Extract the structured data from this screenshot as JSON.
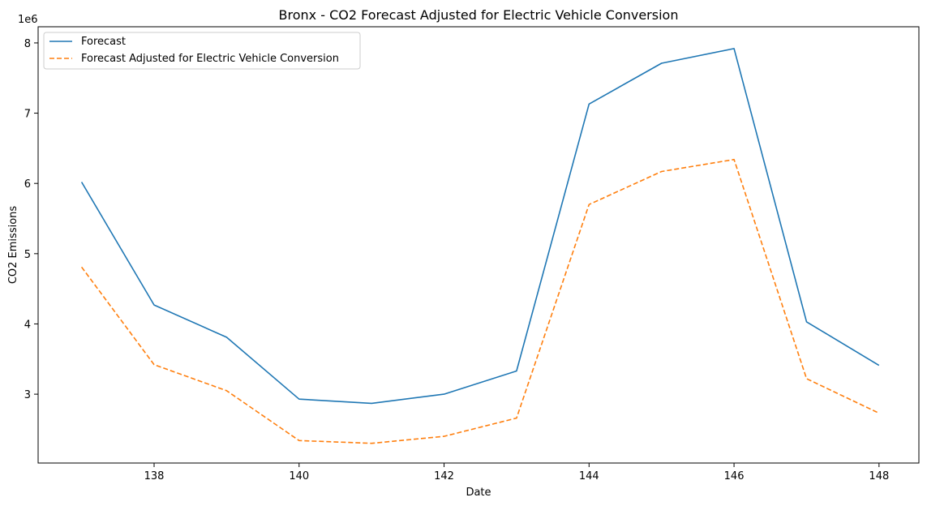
{
  "chart_data": {
    "type": "line",
    "title": "Bronx - CO2 Forecast Adjusted for Electric Vehicle Conversion",
    "xlabel": "Date",
    "ylabel": "CO2 Emissions",
    "y_scale_label": "1e6",
    "x": [
      137,
      138,
      139,
      140,
      141,
      142,
      143,
      144,
      145,
      146,
      147,
      148
    ],
    "xlim": [
      136.4,
      148.55
    ],
    "ylim": [
      2020000,
      8230000
    ],
    "x_ticks": [
      138,
      140,
      142,
      144,
      146,
      148
    ],
    "x_tick_labels": [
      "138",
      "140",
      "142",
      "144",
      "146",
      "148"
    ],
    "y_ticks": [
      3000000,
      4000000,
      5000000,
      6000000,
      7000000,
      8000000
    ],
    "y_tick_labels": [
      "3",
      "4",
      "5",
      "6",
      "7",
      "8"
    ],
    "grid": false,
    "legend_position": "top-left",
    "series": [
      {
        "name": "Forecast",
        "color": "#1f77b4",
        "style": "solid",
        "values": [
          6020000,
          4270000,
          3810000,
          2930000,
          2870000,
          3000000,
          3330000,
          7130000,
          7710000,
          7920000,
          4030000,
          3410000
        ]
      },
      {
        "name": "Forecast Adjusted for Electric Vehicle Conversion",
        "color": "#ff7f0e",
        "style": "dashed",
        "values": [
          4810000,
          3420000,
          3050000,
          2340000,
          2300000,
          2400000,
          2660000,
          5700000,
          6170000,
          6340000,
          3220000,
          2730000
        ]
      }
    ]
  }
}
